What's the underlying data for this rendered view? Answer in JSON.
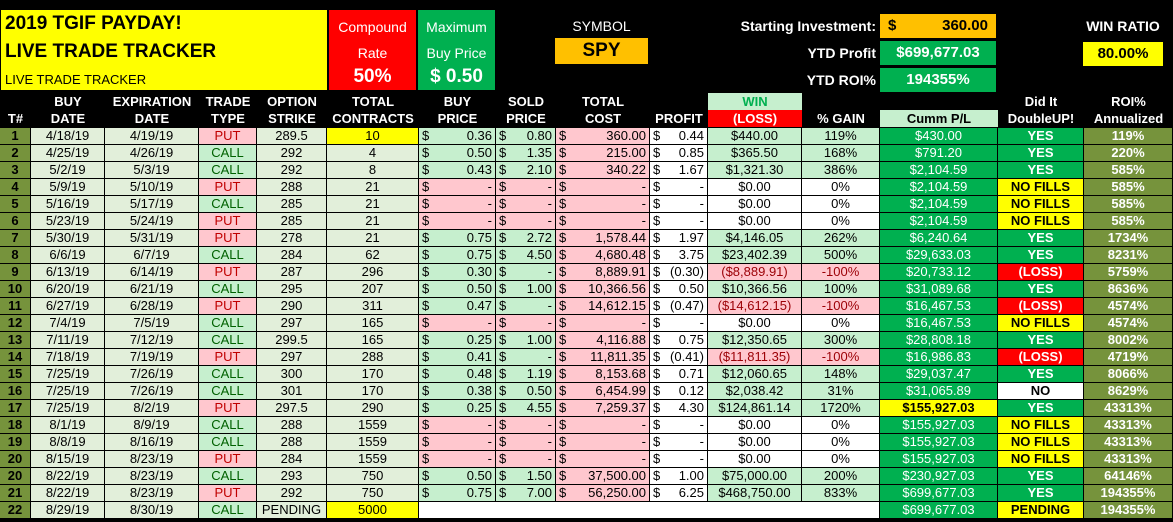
{
  "title": {
    "line1": "2019 TGIF PAYDAY!",
    "line2": "LIVE TRADE TRACKER",
    "line3": "LIVE TRADE TRACKER"
  },
  "compound": {
    "label1": "Compound",
    "label2": "Rate",
    "value": "50%"
  },
  "maximum": {
    "label1": "Maximum",
    "label2": "Buy Price",
    "value": "$ 0.50"
  },
  "symbol": {
    "label": "SYMBOL",
    "value": "SPY"
  },
  "stats": {
    "starting_label": "Starting Investment:",
    "starting_currency": "$",
    "starting_value": "360.00",
    "ytd_profit_label": "YTD Profit",
    "ytd_profit_value": "$699,677.03",
    "ytd_roi_label": "YTD ROI%",
    "ytd_roi_value": "194355%"
  },
  "win_ratio": {
    "label": "WIN RATIO",
    "value": "80.00%"
  },
  "headers": {
    "num": "T#",
    "buy_date": [
      "BUY",
      "DATE"
    ],
    "exp_date": [
      "EXPIRATION",
      "DATE"
    ],
    "trade_type": [
      "TRADE",
      "TYPE"
    ],
    "strike": [
      "OPTION",
      "STRIKE"
    ],
    "contracts": [
      "TOTAL",
      "CONTRACTS"
    ],
    "buy_price": [
      "BUY",
      "PRICE"
    ],
    "sold_price": [
      "SOLD",
      "PRICE"
    ],
    "cost": [
      "TOTAL",
      "COST"
    ],
    "profit": "PROFIT",
    "win": "WIN",
    "loss": "(LOSS)",
    "gain": "% GAIN",
    "cumm": "Cumm P/L",
    "double": [
      "Did It",
      "DoubleUP!"
    ],
    "roi": [
      "ROI%",
      "Annualized"
    ]
  },
  "colors": {
    "green": "#00b050",
    "red": "#ff0000",
    "yellow": "#ffff00",
    "orange": "#ffc000",
    "light_green": "#c6efce",
    "pale_green": "#e2efda",
    "light_red": "#ffc7ce",
    "olive": "#76933c"
  },
  "rows": [
    {
      "n": "1",
      "buy": "4/18/19",
      "exp": "4/19/19",
      "type": "PUT",
      "strike": "289.5",
      "contracts": "10",
      "bp": "0.36",
      "sp": "0.80",
      "cost": "360.00",
      "profit": "0.44",
      "win": "$440.00",
      "gain": "119%",
      "cumm": "$430.00",
      "dbl": "YES",
      "roi": "119%"
    },
    {
      "n": "2",
      "buy": "4/25/19",
      "exp": "4/26/19",
      "type": "CALL",
      "strike": "292",
      "contracts": "4",
      "bp": "0.50",
      "sp": "1.35",
      "cost": "215.00",
      "profit": "0.85",
      "win": "$365.50",
      "gain": "168%",
      "cumm": "$791.20",
      "dbl": "YES",
      "roi": "220%"
    },
    {
      "n": "3",
      "buy": "5/2/19",
      "exp": "5/3/19",
      "type": "CALL",
      "strike": "292",
      "contracts": "8",
      "bp": "0.43",
      "sp": "2.10",
      "cost": "340.22",
      "profit": "1.67",
      "win": "$1,321.30",
      "gain": "386%",
      "cumm": "$2,104.59",
      "dbl": "YES",
      "roi": "585%"
    },
    {
      "n": "4",
      "buy": "5/9/19",
      "exp": "5/10/19",
      "type": "PUT",
      "strike": "288",
      "contracts": "21",
      "bp": "-",
      "sp": "-",
      "cost": "-",
      "profit": "-",
      "win": "$0.00",
      "gain": "0%",
      "cumm": "$2,104.59",
      "dbl": "NO FILLS",
      "roi": "585%"
    },
    {
      "n": "5",
      "buy": "5/16/19",
      "exp": "5/17/19",
      "type": "CALL",
      "strike": "285",
      "contracts": "21",
      "bp": "-",
      "sp": "-",
      "cost": "-",
      "profit": "-",
      "win": "$0.00",
      "gain": "0%",
      "cumm": "$2,104.59",
      "dbl": "NO FILLS",
      "roi": "585%"
    },
    {
      "n": "6",
      "buy": "5/23/19",
      "exp": "5/24/19",
      "type": "PUT",
      "strike": "285",
      "contracts": "21",
      "bp": "-",
      "sp": "-",
      "cost": "-",
      "profit": "-",
      "win": "$0.00",
      "gain": "0%",
      "cumm": "$2,104.59",
      "dbl": "NO FILLS",
      "roi": "585%"
    },
    {
      "n": "7",
      "buy": "5/30/19",
      "exp": "5/31/19",
      "type": "PUT",
      "strike": "278",
      "contracts": "21",
      "bp": "0.75",
      "sp": "2.72",
      "cost": "1,578.44",
      "profit": "1.97",
      "win": "$4,146.05",
      "gain": "262%",
      "cumm": "$6,240.64",
      "dbl": "YES",
      "roi": "1734%"
    },
    {
      "n": "8",
      "buy": "6/6/19",
      "exp": "6/7/19",
      "type": "CALL",
      "strike": "284",
      "contracts": "62",
      "bp": "0.75",
      "sp": "4.50",
      "cost": "4,680.48",
      "profit": "3.75",
      "win": "$23,402.39",
      "gain": "500%",
      "cumm": "$29,633.03",
      "dbl": "YES",
      "roi": "8231%"
    },
    {
      "n": "9",
      "buy": "6/13/19",
      "exp": "6/14/19",
      "type": "PUT",
      "strike": "287",
      "contracts": "296",
      "bp": "0.30",
      "sp": "-",
      "cost": "8,889.91",
      "profit": "(0.30)",
      "win": "($8,889.91)",
      "gain": "-100%",
      "cumm": "$20,733.12",
      "dbl": "(LOSS)",
      "roi": "5759%"
    },
    {
      "n": "10",
      "buy": "6/20/19",
      "exp": "6/21/19",
      "type": "CALL",
      "strike": "295",
      "contracts": "207",
      "bp": "0.50",
      "sp": "1.00",
      "cost": "10,366.56",
      "profit": "0.50",
      "win": "$10,366.56",
      "gain": "100%",
      "cumm": "$31,089.68",
      "dbl": "YES",
      "roi": "8636%"
    },
    {
      "n": "11",
      "buy": "6/27/19",
      "exp": "6/28/19",
      "type": "PUT",
      "strike": "290",
      "contracts": "311",
      "bp": "0.47",
      "sp": "-",
      "cost": "14,612.15",
      "profit": "(0.47)",
      "win": "($14,612.15)",
      "gain": "-100%",
      "cumm": "$16,467.53",
      "dbl": "(LOSS)",
      "roi": "4574%"
    },
    {
      "n": "12",
      "buy": "7/4/19",
      "exp": "7/5/19",
      "type": "CALL",
      "strike": "297",
      "contracts": "165",
      "bp": "-",
      "sp": "-",
      "cost": "-",
      "profit": "-",
      "win": "$0.00",
      "gain": "0%",
      "cumm": "$16,467.53",
      "dbl": "NO FILLS",
      "roi": "4574%"
    },
    {
      "n": "13",
      "buy": "7/11/19",
      "exp": "7/12/19",
      "type": "CALL",
      "strike": "299.5",
      "contracts": "165",
      "bp": "0.25",
      "sp": "1.00",
      "cost": "4,116.88",
      "profit": "0.75",
      "win": "$12,350.65",
      "gain": "300%",
      "cumm": "$28,808.18",
      "dbl": "YES",
      "roi": "8002%"
    },
    {
      "n": "14",
      "buy": "7/18/19",
      "exp": "7/19/19",
      "type": "PUT",
      "strike": "297",
      "contracts": "288",
      "bp": "0.41",
      "sp": "-",
      "cost": "11,811.35",
      "profit": "(0.41)",
      "win": "($11,811.35)",
      "gain": "-100%",
      "cumm": "$16,986.83",
      "dbl": "(LOSS)",
      "roi": "4719%"
    },
    {
      "n": "15",
      "buy": "7/25/19",
      "exp": "7/26/19",
      "type": "CALL",
      "strike": "300",
      "contracts": "170",
      "bp": "0.48",
      "sp": "1.19",
      "cost": "8,153.68",
      "profit": "0.71",
      "win": "$12,060.65",
      "gain": "148%",
      "cumm": "$29,037.47",
      "dbl": "YES",
      "roi": "8066%"
    },
    {
      "n": "16",
      "buy": "7/25/19",
      "exp": "7/26/19",
      "type": "CALL",
      "strike": "301",
      "contracts": "170",
      "bp": "0.38",
      "sp": "0.50",
      "cost": "6,454.99",
      "profit": "0.12",
      "win": "$2,038.42",
      "gain": "31%",
      "cumm": "$31,065.89",
      "dbl": "NO",
      "roi": "8629%"
    },
    {
      "n": "17",
      "buy": "7/25/19",
      "exp": "8/2/19",
      "type": "PUT",
      "strike": "297.5",
      "contracts": "290",
      "bp": "0.25",
      "sp": "4.55",
      "cost": "7,259.37",
      "profit": "4.30",
      "win": "$124,861.14",
      "gain": "1720%",
      "cumm": "$155,927.03",
      "dbl": "YES",
      "roi": "43313%"
    },
    {
      "n": "18",
      "buy": "8/1/19",
      "exp": "8/9/19",
      "type": "CALL",
      "strike": "288",
      "contracts": "1559",
      "bp": "-",
      "sp": "-",
      "cost": "-",
      "profit": "-",
      "win": "$0.00",
      "gain": "0%",
      "cumm": "$155,927.03",
      "dbl": "NO FILLS",
      "roi": "43313%"
    },
    {
      "n": "19",
      "buy": "8/8/19",
      "exp": "8/16/19",
      "type": "CALL",
      "strike": "288",
      "contracts": "1559",
      "bp": "-",
      "sp": "-",
      "cost": "-",
      "profit": "-",
      "win": "$0.00",
      "gain": "0%",
      "cumm": "$155,927.03",
      "dbl": "NO FILLS",
      "roi": "43313%"
    },
    {
      "n": "20",
      "buy": "8/15/19",
      "exp": "8/23/19",
      "type": "PUT",
      "strike": "284",
      "contracts": "1559",
      "bp": "-",
      "sp": "-",
      "cost": "-",
      "profit": "-",
      "win": "$0.00",
      "gain": "0%",
      "cumm": "$155,927.03",
      "dbl": "NO FILLS",
      "roi": "43313%"
    },
    {
      "n": "20",
      "buy": "8/22/19",
      "exp": "8/23/19",
      "type": "CALL",
      "strike": "293",
      "contracts": "750",
      "bp": "0.50",
      "sp": "1.50",
      "cost": "37,500.00",
      "profit": "1.00",
      "win": "$75,000.00",
      "gain": "200%",
      "cumm": "$230,927.03",
      "dbl": "YES",
      "roi": "64146%"
    },
    {
      "n": "21",
      "buy": "8/22/19",
      "exp": "8/23/19",
      "type": "PUT",
      "strike": "292",
      "contracts": "750",
      "bp": "0.75",
      "sp": "7.00",
      "cost": "56,250.00",
      "profit": "6.25",
      "win": "$468,750.00",
      "gain": "833%",
      "cumm": "$699,677.03",
      "dbl": "YES",
      "roi": "194355%"
    },
    {
      "n": "22",
      "buy": "8/29/19",
      "exp": "8/30/19",
      "type": "CALL",
      "strike": "PENDING",
      "contracts": "5000",
      "bp": "",
      "sp": "",
      "cost": "",
      "profit": "",
      "win": "",
      "gain": "",
      "cumm": "$699,677.03",
      "dbl": "PENDING",
      "roi": "194355%"
    }
  ]
}
